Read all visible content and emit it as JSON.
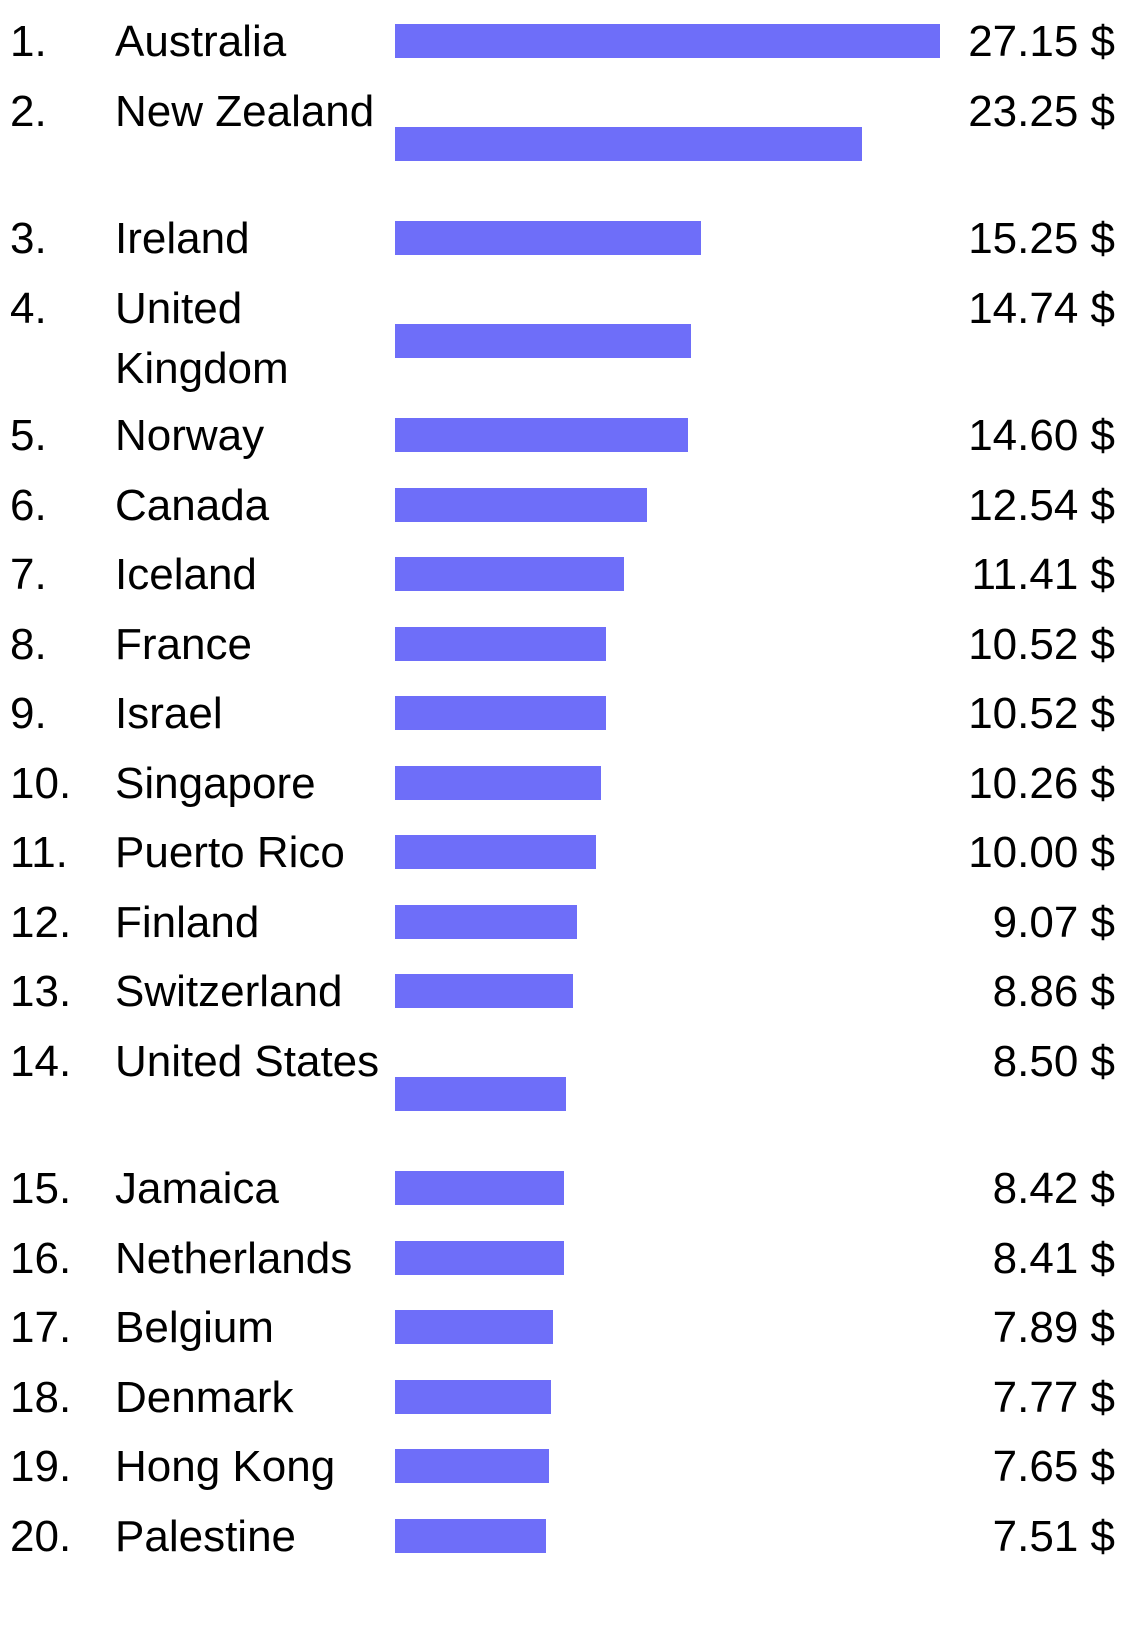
{
  "chart_data": {
    "type": "bar",
    "orientation": "horizontal",
    "title": "",
    "xlabel": "",
    "ylabel": "",
    "unit": "$",
    "bar_color": "#6e6ef9",
    "xlim": [
      0,
      27.15
    ],
    "rows": [
      {
        "rank": "1.",
        "country": "Australia",
        "value": 27.15,
        "label": "27.15 $"
      },
      {
        "rank": "2.",
        "country": "New Zealand",
        "value": 23.25,
        "label": "23.25 $"
      },
      {
        "rank": "3.",
        "country": "Ireland",
        "value": 15.25,
        "label": "15.25 $"
      },
      {
        "rank": "4.",
        "country": "United Kingdom",
        "value": 14.74,
        "label": "14.74 $"
      },
      {
        "rank": "5.",
        "country": "Norway",
        "value": 14.6,
        "label": "14.60 $"
      },
      {
        "rank": "6.",
        "country": "Canada",
        "value": 12.54,
        "label": "12.54 $"
      },
      {
        "rank": "7.",
        "country": "Iceland",
        "value": 11.41,
        "label": "11.41 $"
      },
      {
        "rank": "8.",
        "country": "France",
        "value": 10.52,
        "label": "10.52 $"
      },
      {
        "rank": "9.",
        "country": "Israel",
        "value": 10.52,
        "label": "10.52 $"
      },
      {
        "rank": "10.",
        "country": "Singapore",
        "value": 10.26,
        "label": "10.26 $"
      },
      {
        "rank": "11.",
        "country": "Puerto Rico",
        "value": 10.0,
        "label": "10.00 $"
      },
      {
        "rank": "12.",
        "country": "Finland",
        "value": 9.07,
        "label": "9.07 $"
      },
      {
        "rank": "13.",
        "country": "Switzerland",
        "value": 8.86,
        "label": "8.86 $"
      },
      {
        "rank": "14.",
        "country": "United States",
        "value": 8.5,
        "label": "8.50 $"
      },
      {
        "rank": "15.",
        "country": "Jamaica",
        "value": 8.42,
        "label": "8.42 $"
      },
      {
        "rank": "16.",
        "country": "Netherlands",
        "value": 8.41,
        "label": "8.41 $"
      },
      {
        "rank": "17.",
        "country": "Belgium",
        "value": 7.89,
        "label": "7.89 $"
      },
      {
        "rank": "18.",
        "country": "Denmark",
        "value": 7.77,
        "label": "7.77 $"
      },
      {
        "rank": "19.",
        "country": "Hong Kong",
        "value": 7.65,
        "label": "7.65 $"
      },
      {
        "rank": "20.",
        "country": "Palestine",
        "value": 7.51,
        "label": "7.51 $"
      }
    ]
  }
}
